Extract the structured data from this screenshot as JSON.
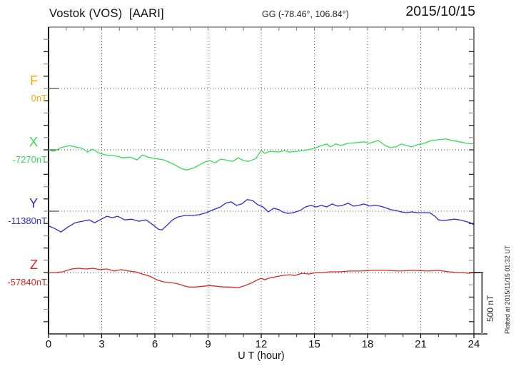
{
  "header": {
    "station": "Vostok (VOS)  [AARI]",
    "coords": "GG (-78.46°, 106.84°)",
    "date": "2015/10/15"
  },
  "footer": {
    "xlabel": "U T (hour)",
    "scale_label": "500 nT",
    "plotted_at": "Plotted at 2015/11/15 01:32 UT"
  },
  "chart_data": {
    "type": "line",
    "title": "Vostok (VOS) [AARI] magnetogram 2015/10/15",
    "xlabel": "U T (hour)",
    "x_range": [
      0,
      24
    ],
    "x_ticks": [
      0,
      3,
      6,
      9,
      12,
      15,
      18,
      21,
      24
    ],
    "grid": "dotted",
    "minor_tick_nT": 100,
    "scale_bar_nT": 500,
    "series": [
      {
        "name": "F",
        "color": "#ffa500",
        "baseline_label": "0nT",
        "baseline_nT": 0,
        "points": []
      },
      {
        "name": "X",
        "color": "#33dd55",
        "baseline_label": "-7270nT",
        "baseline_nT": -7270,
        "points": [
          [
            0,
            0
          ],
          [
            0.3,
            -12
          ],
          [
            0.7,
            18
          ],
          [
            1.2,
            35
          ],
          [
            1.5,
            24
          ],
          [
            1.9,
            12
          ],
          [
            2.2,
            -18
          ],
          [
            2.5,
            6
          ],
          [
            2.8,
            -24
          ],
          [
            3.2,
            -41
          ],
          [
            3.7,
            -47
          ],
          [
            4.2,
            -65
          ],
          [
            4.6,
            -59
          ],
          [
            5.0,
            -82
          ],
          [
            5.3,
            -41
          ],
          [
            5.6,
            -59
          ],
          [
            6.0,
            -71
          ],
          [
            6.5,
            -82
          ],
          [
            7.0,
            -112
          ],
          [
            7.5,
            -153
          ],
          [
            7.8,
            -165
          ],
          [
            8.2,
            -147
          ],
          [
            8.5,
            -124
          ],
          [
            8.8,
            -100
          ],
          [
            9.1,
            -88
          ],
          [
            9.4,
            -106
          ],
          [
            9.7,
            -76
          ],
          [
            10.0,
            -82
          ],
          [
            10.4,
            -94
          ],
          [
            10.7,
            -65
          ],
          [
            11.0,
            -88
          ],
          [
            11.3,
            -94
          ],
          [
            11.7,
            -71
          ],
          [
            11.9,
            -24
          ],
          [
            12.0,
            -6
          ],
          [
            12.2,
            -29
          ],
          [
            12.5,
            -12
          ],
          [
            13.0,
            -18
          ],
          [
            13.3,
            -6
          ],
          [
            13.6,
            -18
          ],
          [
            14.0,
            -12
          ],
          [
            14.4,
            -6
          ],
          [
            14.8,
            6
          ],
          [
            15.0,
            12
          ],
          [
            15.4,
            35
          ],
          [
            15.7,
            47
          ],
          [
            15.9,
            24
          ],
          [
            16.2,
            47
          ],
          [
            16.5,
            35
          ],
          [
            16.9,
            53
          ],
          [
            17.4,
            59
          ],
          [
            17.8,
            65
          ],
          [
            18.1,
            53
          ],
          [
            18.6,
            76
          ],
          [
            19.0,
            35
          ],
          [
            19.3,
            18
          ],
          [
            19.6,
            24
          ],
          [
            19.9,
            47
          ],
          [
            20.2,
            35
          ],
          [
            20.5,
            24
          ],
          [
            20.8,
            41
          ],
          [
            21.2,
            53
          ],
          [
            21.6,
            76
          ],
          [
            22.0,
            82
          ],
          [
            22.4,
            88
          ],
          [
            22.8,
            76
          ],
          [
            23.2,
            65
          ],
          [
            23.6,
            53
          ],
          [
            24.0,
            47
          ]
        ]
      },
      {
        "name": "Y",
        "color": "#2b2bd0",
        "baseline_label": "-11380nT",
        "baseline_nT": -11380,
        "points": [
          [
            0,
            -120
          ],
          [
            0.35,
            -141
          ],
          [
            0.7,
            -170
          ],
          [
            1.1,
            -129
          ],
          [
            1.5,
            -94
          ],
          [
            1.9,
            -82
          ],
          [
            2.3,
            -71
          ],
          [
            2.6,
            -94
          ],
          [
            2.9,
            -71
          ],
          [
            3.3,
            -41
          ],
          [
            3.6,
            -53
          ],
          [
            3.9,
            -41
          ],
          [
            4.3,
            -71
          ],
          [
            4.7,
            -65
          ],
          [
            5.1,
            -82
          ],
          [
            5.5,
            -71
          ],
          [
            5.9,
            -112
          ],
          [
            6.2,
            -147
          ],
          [
            6.4,
            -153
          ],
          [
            6.7,
            -112
          ],
          [
            7.0,
            -71
          ],
          [
            7.3,
            -47
          ],
          [
            7.7,
            -35
          ],
          [
            8.1,
            -35
          ],
          [
            8.5,
            -29
          ],
          [
            8.9,
            -12
          ],
          [
            9.3,
            12
          ],
          [
            9.7,
            35
          ],
          [
            10.0,
            65
          ],
          [
            10.3,
            76
          ],
          [
            10.6,
            47
          ],
          [
            10.9,
            59
          ],
          [
            11.2,
            94
          ],
          [
            11.5,
            88
          ],
          [
            11.8,
            53
          ],
          [
            12.1,
            35
          ],
          [
            12.4,
            -6
          ],
          [
            12.7,
            24
          ],
          [
            13.0,
            12
          ],
          [
            13.2,
            -6
          ],
          [
            13.5,
            -18
          ],
          [
            13.8,
            -12
          ],
          [
            14.2,
            6
          ],
          [
            14.5,
            35
          ],
          [
            14.8,
            47
          ],
          [
            15.1,
            35
          ],
          [
            15.4,
            47
          ],
          [
            15.7,
            35
          ],
          [
            16.0,
            59
          ],
          [
            16.3,
            41
          ],
          [
            16.6,
            47
          ],
          [
            16.9,
            65
          ],
          [
            17.2,
            41
          ],
          [
            17.5,
            47
          ],
          [
            17.8,
            59
          ],
          [
            18.1,
            41
          ],
          [
            18.4,
            47
          ],
          [
            18.7,
            41
          ],
          [
            19.0,
            29
          ],
          [
            19.3,
            12
          ],
          [
            19.6,
            6
          ],
          [
            19.9,
            -6
          ],
          [
            20.2,
            -12
          ],
          [
            20.5,
            -6
          ],
          [
            20.8,
            -12
          ],
          [
            21.2,
            -12
          ],
          [
            21.5,
            -12
          ],
          [
            21.8,
            -41
          ],
          [
            22.0,
            -71
          ],
          [
            22.3,
            -76
          ],
          [
            22.6,
            -71
          ],
          [
            22.9,
            -65
          ],
          [
            23.2,
            -71
          ],
          [
            23.5,
            -82
          ],
          [
            23.8,
            -94
          ],
          [
            24.0,
            -112
          ]
        ]
      },
      {
        "name": "Z",
        "color": "#e02424",
        "baseline_label": "-57840nT",
        "baseline_nT": -57840,
        "points": [
          [
            0,
            0
          ],
          [
            0.4,
            0
          ],
          [
            0.8,
            6
          ],
          [
            1.3,
            29
          ],
          [
            1.7,
            35
          ],
          [
            2.1,
            29
          ],
          [
            2.5,
            35
          ],
          [
            2.9,
            24
          ],
          [
            3.3,
            29
          ],
          [
            3.7,
            12
          ],
          [
            4.1,
            24
          ],
          [
            4.5,
            12
          ],
          [
            4.9,
            6
          ],
          [
            5.3,
            -12
          ],
          [
            5.7,
            -29
          ],
          [
            6.1,
            -59
          ],
          [
            6.5,
            -76
          ],
          [
            6.9,
            -82
          ],
          [
            7.2,
            -88
          ],
          [
            7.6,
            -106
          ],
          [
            7.9,
            -118
          ],
          [
            8.3,
            -118
          ],
          [
            8.7,
            -112
          ],
          [
            9.1,
            -106
          ],
          [
            9.5,
            -112
          ],
          [
            9.9,
            -118
          ],
          [
            10.3,
            -118
          ],
          [
            10.7,
            -124
          ],
          [
            11.1,
            -106
          ],
          [
            11.5,
            -82
          ],
          [
            11.8,
            -59
          ],
          [
            12.0,
            -47
          ],
          [
            12.2,
            -59
          ],
          [
            12.4,
            -47
          ],
          [
            12.8,
            -35
          ],
          [
            13.2,
            -24
          ],
          [
            13.6,
            -18
          ],
          [
            13.9,
            -24
          ],
          [
            14.3,
            -6
          ],
          [
            14.7,
            -12
          ],
          [
            15.1,
            0
          ],
          [
            15.5,
            0
          ],
          [
            15.9,
            6
          ],
          [
            16.4,
            6
          ],
          [
            17.0,
            12
          ],
          [
            17.6,
            12
          ],
          [
            18.2,
            18
          ],
          [
            19.0,
            18
          ],
          [
            19.8,
            12
          ],
          [
            20.6,
            18
          ],
          [
            21.4,
            12
          ],
          [
            22.0,
            18
          ],
          [
            22.6,
            6
          ],
          [
            23.0,
            0
          ],
          [
            23.4,
            0
          ],
          [
            23.7,
            -6
          ],
          [
            24.0,
            0
          ]
        ]
      }
    ]
  }
}
